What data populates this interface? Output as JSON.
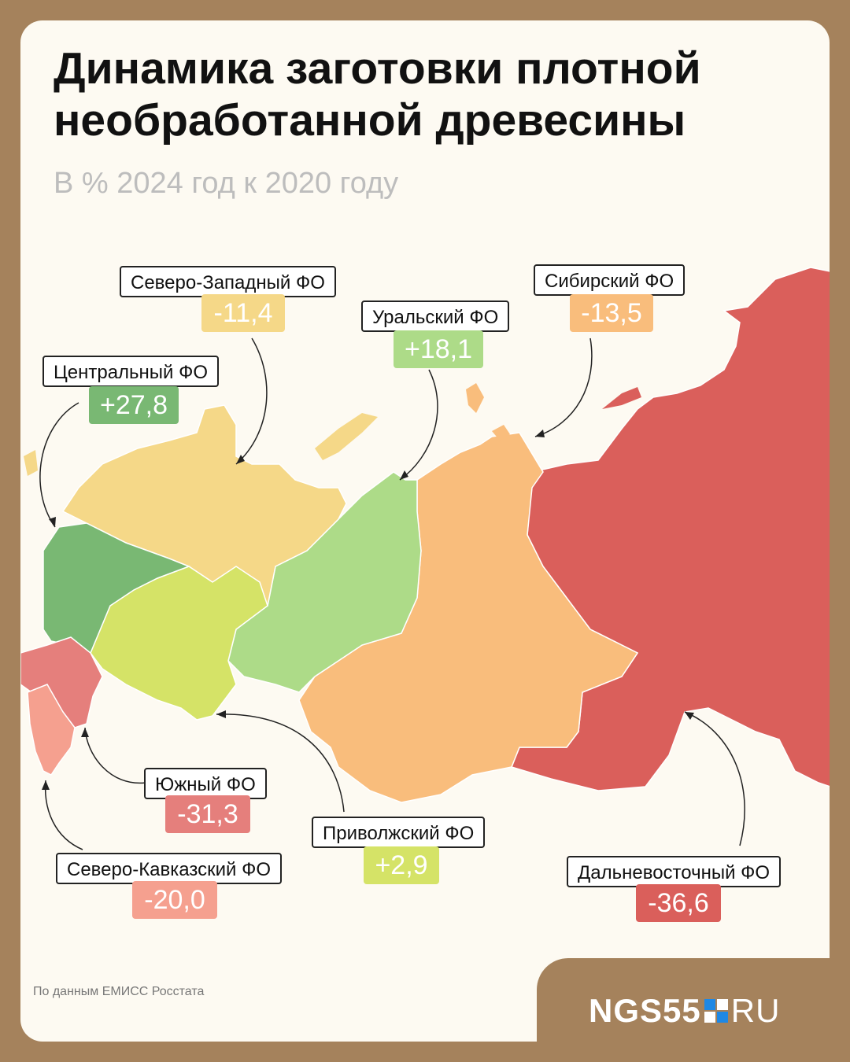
{
  "title": "Динамика заготовки плотной необработанной древесины",
  "subtitle": "В % 2024 год к 2020 году",
  "regions": [
    {
      "id": "szfo",
      "label": "Северо-Западный ФО",
      "value": "-11,4",
      "color": "#f5d888"
    },
    {
      "id": "cfo",
      "label": "Центральный ФО",
      "value": "+27,8",
      "color": "#79b873"
    },
    {
      "id": "ufo",
      "label": "Уральский ФО",
      "value": "+18,1",
      "color": "#addb88"
    },
    {
      "id": "sfo",
      "label": "Сибирский ФО",
      "value": "-13,5",
      "color": "#f9bd7c"
    },
    {
      "id": "yufo",
      "label": "Южный ФО",
      "value": "-31,3",
      "color": "#e57f7c"
    },
    {
      "id": "pfo",
      "label": "Приволжский ФО",
      "value": "+2,9",
      "color": "#d5e367"
    },
    {
      "id": "skfo",
      "label": "Северо-Кавказский ФО",
      "value": "-20,0",
      "color": "#f5a08f"
    },
    {
      "id": "dfo",
      "label": "Дальневосточный ФО",
      "value": "-36,6",
      "color": "#da5f5b"
    }
  ],
  "source": "По данным ЕМИСС Росстата",
  "logo": {
    "name": "NGS55",
    "domain": "RU"
  }
}
